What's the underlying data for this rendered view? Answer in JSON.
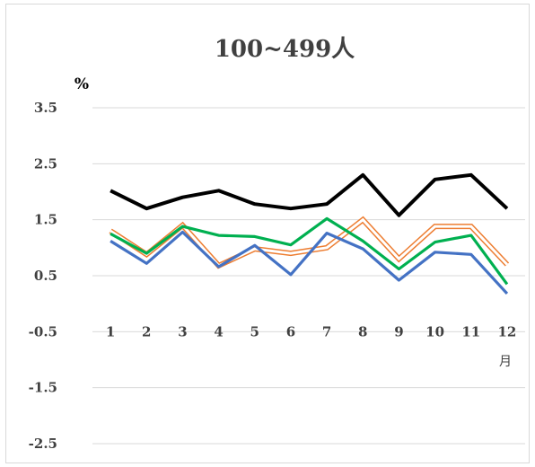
{
  "chart_data": {
    "type": "line",
    "title": "100~499人",
    "ylabel": "%",
    "xlabel": "月",
    "categories": [
      "1",
      "2",
      "3",
      "4",
      "5",
      "6",
      "7",
      "8",
      "9",
      "10",
      "11",
      "12"
    ],
    "y_ticks": [
      "3.5",
      "2.5",
      "1.5",
      "0.5",
      "-0.5",
      "-1.5",
      "-2.5"
    ],
    "ylim": [
      -2.5,
      3.5
    ],
    "grid": true,
    "legend": "none",
    "series": [
      {
        "color": "#000000",
        "style": "solid",
        "values": [
          2.02,
          1.7,
          1.9,
          2.02,
          1.78,
          1.7,
          1.78,
          2.3,
          1.58,
          2.22,
          2.3,
          1.7
        ]
      },
      {
        "color": "#ED7D31",
        "style": "double",
        "values": [
          1.3,
          0.88,
          1.4,
          0.68,
          0.98,
          0.9,
          1.0,
          1.5,
          0.8,
          1.38,
          1.38,
          0.7
        ]
      },
      {
        "color": "#00B050",
        "style": "solid",
        "values": [
          1.25,
          0.9,
          1.38,
          1.22,
          1.2,
          1.05,
          1.52,
          1.12,
          0.62,
          1.1,
          1.22,
          0.35
        ]
      },
      {
        "color": "#4472C4",
        "style": "solid",
        "values": [
          1.12,
          0.72,
          1.28,
          0.66,
          1.04,
          0.52,
          1.26,
          0.98,
          0.42,
          0.92,
          0.88,
          0.18
        ]
      }
    ]
  }
}
